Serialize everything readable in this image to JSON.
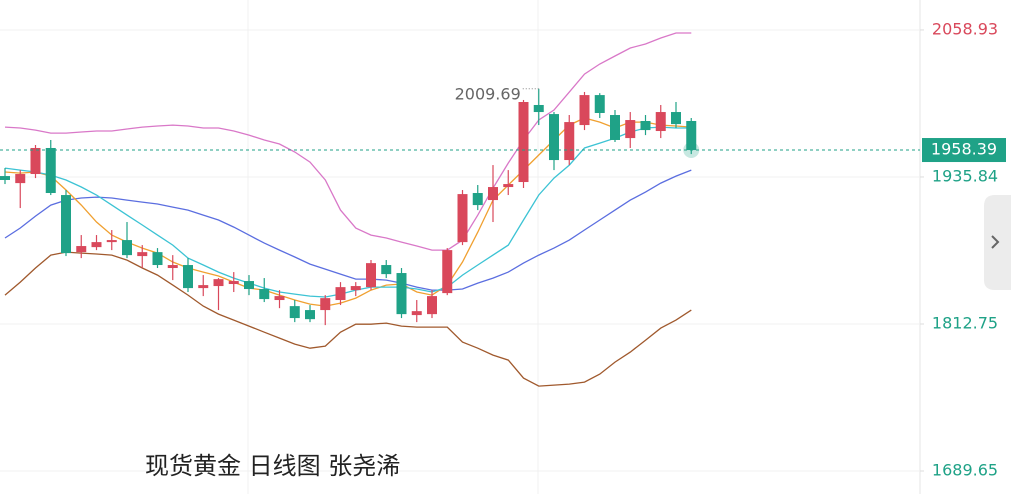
{
  "chart_data": {
    "type": "candlestick",
    "title": "现货黄金 日线图 张尧浠",
    "up_color": "#d9485b",
    "down_color": "#1fa287",
    "ylim": [
      1670.4,
      2084
    ],
    "yticks": [
      1689.65,
      1812.75,
      1935.84,
      2058.93
    ],
    "ytick_colors": [
      "#1fa287",
      "#1fa287",
      "#1fa287",
      "#d9485b"
    ],
    "grid": true,
    "open": [
      1936.6,
      1930.7,
      1938.3,
      1960.1,
      1920.7,
      1872.9,
      1877.1,
      1881.3,
      1883.0,
      1869.6,
      1872.9,
      1859.6,
      1862.1,
      1842.8,
      1844.5,
      1846.2,
      1848.7,
      1842.0,
      1832.8,
      1827.7,
      1824.4,
      1824.4,
      1832.8,
      1841.1,
      1843.6,
      1862.1,
      1855.4,
      1820.2,
      1821.0,
      1838.6,
      1881.3,
      1922.4,
      1916.5,
      1927.4,
      1931.6,
      1996.1,
      1988.5,
      1950.0,
      1979.3,
      2004.4,
      1987.7,
      1968.4,
      1982.7,
      1974.3,
      1990.2,
      1982.7
    ],
    "high": [
      1943.3,
      1941.6,
      1962.6,
      1966.8,
      1924.9,
      1887.2,
      1887.2,
      1891.4,
      1898.1,
      1878.8,
      1876.3,
      1870.4,
      1867.9,
      1853.7,
      1851.2,
      1856.2,
      1853.7,
      1851.2,
      1841.1,
      1832.8,
      1828.6,
      1836.9,
      1847.8,
      1847.8,
      1866.3,
      1866.3,
      1859.6,
      1832.8,
      1841.1,
      1876.3,
      1924.9,
      1929.1,
      1945.8,
      1941.6,
      2000.3,
      2009.69,
      1990.2,
      1987.7,
      2007.0,
      2006.0,
      1991.9,
      1990.2,
      1987.7,
      1996.1,
      1998.6,
      1985.2
    ],
    "low": [
      1929.9,
      1909.8,
      1934.9,
      1920.7,
      1869.6,
      1867.9,
      1874.6,
      1874.6,
      1867.9,
      1859.6,
      1859.6,
      1849.5,
      1839.5,
      1836.1,
      1824.4,
      1839.5,
      1836.9,
      1831.1,
      1826.0,
      1814.3,
      1814.3,
      1811.8,
      1828.6,
      1836.1,
      1841.1,
      1851.2,
      1817.7,
      1814.3,
      1817.7,
      1836.9,
      1878.8,
      1908.1,
      1898.1,
      1920.7,
      1926.6,
      1979.3,
      1941.6,
      1945.8,
      1975.1,
      1985.2,
      1965.1,
      1960.1,
      1970.9,
      1968.4,
      1976.8,
      1955.0
    ],
    "close": [
      1933.3,
      1938.3,
      1960.1,
      1922.4,
      1872.1,
      1878.0,
      1881.3,
      1883.0,
      1870.4,
      1872.9,
      1862.1,
      1862.1,
      1842.8,
      1845.3,
      1850.3,
      1848.7,
      1842.0,
      1833.6,
      1836.1,
      1817.7,
      1816.8,
      1834.4,
      1843.6,
      1844.5,
      1863.7,
      1854.5,
      1821.0,
      1823.5,
      1836.1,
      1874.6,
      1921.5,
      1912.3,
      1927.4,
      1929.9,
      1998.6,
      1990.2,
      1950.0,
      1981.8,
      2004.4,
      1989.4,
      1966.8,
      1983.5,
      1975.1,
      1990.2,
      1980.1,
      1958.39
    ],
    "lines": [
      {
        "color": "#d978c8",
        "values": [
          1977.6,
          1976.8,
          1975.1,
          1972.6,
          1972.6,
          1973.5,
          1974.3,
          1974.3,
          1976.0,
          1977.6,
          1978.5,
          1979.3,
          1978.5,
          1976.8,
          1976.8,
          1974.3,
          1970.9,
          1966.8,
          1963.4,
          1956.7,
          1948.3,
          1933.3,
          1908.1,
          1893.0,
          1887.2,
          1884.7,
          1881.3,
          1878.0,
          1874.6,
          1874.6,
          1883.0,
          1903.9,
          1926.5,
          1947.5,
          1966.8,
          1983.5,
          1991.9,
          2006.9,
          2022.0,
          2030.4,
          2037.1,
          2043.8,
          2047.2,
          2052.2,
          2056.4,
          2056.4
        ]
      },
      {
        "color": "#5b6ee0",
        "values": [
          1884.7,
          1893.1,
          1903.1,
          1912.3,
          1916.5,
          1918.2,
          1919.0,
          1918.2,
          1916.5,
          1914.8,
          1913.2,
          1910.6,
          1908.1,
          1903.9,
          1899.8,
          1893.9,
          1887.2,
          1880.5,
          1874.6,
          1868.8,
          1862.9,
          1858.7,
          1854.5,
          1850.3,
          1850.3,
          1849.5,
          1847.0,
          1843.6,
          1841.1,
          1841.1,
          1842.0,
          1847.0,
          1851.2,
          1856.2,
          1863.7,
          1870.4,
          1876.3,
          1883.0,
          1891.4,
          1899.8,
          1908.1,
          1916.5,
          1923.2,
          1930.7,
          1936.6,
          1941.6
        ]
      },
      {
        "color": "#a0592d",
        "values": [
          1836.9,
          1847.8,
          1859.6,
          1870.4,
          1872.9,
          1872.1,
          1871.3,
          1870.4,
          1866.2,
          1859.6,
          1853.7,
          1845.3,
          1836.9,
          1827.7,
          1821.0,
          1816.0,
          1811.0,
          1805.9,
          1800.9,
          1795.9,
          1792.5,
          1794.2,
          1805.9,
          1812.6,
          1812.6,
          1813.5,
          1811.0,
          1810.1,
          1810.1,
          1810.1,
          1797.6,
          1792.5,
          1786.7,
          1782.5,
          1767.4,
          1760.7,
          1761.6,
          1762.4,
          1764.1,
          1770.8,
          1780.8,
          1789.2,
          1799.2,
          1809.3,
          1816.0,
          1824.4
        ]
      },
      {
        "color": "#f0a030",
        "values": [
          1940.0,
          1939.1,
          1940.0,
          1936.6,
          1924.9,
          1912.3,
          1898.1,
          1887.2,
          1881.3,
          1876.3,
          1872.1,
          1864.6,
          1859.6,
          1856.2,
          1852.9,
          1847.8,
          1842.8,
          1841.1,
          1836.9,
          1832.8,
          1829.4,
          1827.7,
          1830.2,
          1834.4,
          1841.1,
          1845.3,
          1846.2,
          1839.5,
          1836.9,
          1845.3,
          1864.6,
          1889.7,
          1916.5,
          1929.1,
          1941.6,
          1954.2,
          1966.8,
          1979.3,
          1985.2,
          1981.8,
          1976.8,
          1981.8,
          1981.8,
          1979.3,
          1978.5,
          1977.6
        ]
      },
      {
        "color": "#3cc3d4",
        "values": [
          1943.3,
          1941.6,
          1940.0,
          1937.4,
          1933.3,
          1927.4,
          1920.7,
          1912.3,
          1903.9,
          1895.6,
          1887.2,
          1878.8,
          1867.9,
          1862.1,
          1856.2,
          1851.2,
          1847.0,
          1842.8,
          1839.5,
          1837.8,
          1836.1,
          1835.3,
          1837.8,
          1841.1,
          1843.6,
          1843.6,
          1843.6,
          1842.0,
          1839.5,
          1843.6,
          1853.7,
          1862.1,
          1870.4,
          1878.8,
          1899.8,
          1920.7,
          1934.9,
          1945.8,
          1960.1,
          1964.2,
          1968.4,
          1973.5,
          1976.8,
          1977.6,
          1976.8,
          1976.8
        ]
      }
    ]
  }
}
